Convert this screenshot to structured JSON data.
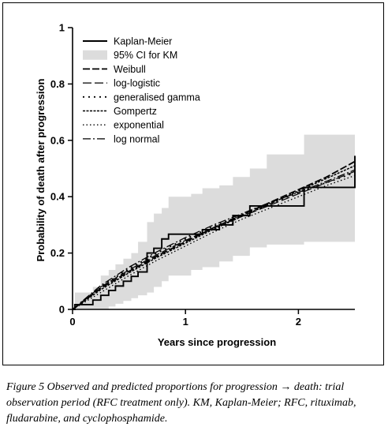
{
  "chart_data": {
    "type": "line",
    "title": "",
    "xlabel": "Years since progression",
    "ylabel": "Probability of death after progression",
    "xlim": [
      0,
      2.5
    ],
    "ylim": [
      0,
      1
    ],
    "x_ticks": [
      0,
      1,
      2
    ],
    "y_ticks": [
      0,
      0.2,
      0.4,
      0.6,
      0.8,
      1
    ],
    "x_tick_labels": [
      "0",
      "1",
      "2"
    ],
    "y_tick_labels": [
      "0",
      "0.2",
      "0.4",
      "0.6",
      "0.8",
      "1"
    ],
    "grid": false,
    "legend_position": "top-left",
    "kaplan_meier": {
      "name": "Kaplan-Meier",
      "x": [
        0,
        0.02,
        0.18,
        0.25,
        0.32,
        0.38,
        0.45,
        0.52,
        0.58,
        0.66,
        0.72,
        0.79,
        0.85,
        1.05,
        1.15,
        1.3,
        1.42,
        1.57,
        1.72,
        2.05,
        2.5
      ],
      "y": [
        0,
        0.017,
        0.033,
        0.05,
        0.067,
        0.083,
        0.1,
        0.117,
        0.133,
        0.2,
        0.217,
        0.25,
        0.267,
        0.267,
        0.283,
        0.3,
        0.333,
        0.367,
        0.367,
        0.433,
        0.545
      ]
    },
    "ci_band": {
      "name": "95% CI for KM",
      "x": [
        0,
        0.02,
        0.18,
        0.25,
        0.32,
        0.38,
        0.45,
        0.52,
        0.58,
        0.66,
        0.72,
        0.79,
        0.85,
        1.05,
        1.15,
        1.3,
        1.42,
        1.57,
        1.72,
        2.05,
        2.5
      ],
      "lower": [
        0,
        0,
        0,
        0,
        0.01,
        0.02,
        0.03,
        0.04,
        0.05,
        0.06,
        0.08,
        0.1,
        0.12,
        0.14,
        0.15,
        0.17,
        0.19,
        0.22,
        0.23,
        0.24,
        0.21
      ],
      "upper": [
        0,
        0.06,
        0.08,
        0.12,
        0.14,
        0.16,
        0.18,
        0.2,
        0.24,
        0.31,
        0.34,
        0.36,
        0.4,
        0.41,
        0.43,
        0.44,
        0.47,
        0.5,
        0.55,
        0.62,
        0.74
      ]
    },
    "series": [
      {
        "name": "Weibull",
        "dash": "9,3",
        "width": 1.8,
        "x": [
          0,
          0.25,
          0.5,
          0.75,
          1,
          1.25,
          1.5,
          1.75,
          2,
          2.25,
          2.5
        ],
        "y": [
          0,
          0.075,
          0.135,
          0.19,
          0.24,
          0.29,
          0.335,
          0.38,
          0.425,
          0.47,
          0.525
        ]
      },
      {
        "name": "log-logistic",
        "dash": "11,4",
        "width": 1.2,
        "x": [
          0,
          0.25,
          0.5,
          0.75,
          1,
          1.25,
          1.5,
          1.75,
          2,
          2.25,
          2.5
        ],
        "y": [
          0,
          0.08,
          0.14,
          0.195,
          0.245,
          0.29,
          0.33,
          0.37,
          0.41,
          0.45,
          0.49
        ]
      },
      {
        "name": "generalised gamma",
        "dash": "2,5",
        "width": 1.8,
        "x": [
          0,
          0.25,
          0.5,
          0.75,
          1,
          1.25,
          1.5,
          1.75,
          2,
          2.25,
          2.5
        ],
        "y": [
          0,
          0.08,
          0.145,
          0.2,
          0.25,
          0.295,
          0.335,
          0.375,
          0.415,
          0.45,
          0.485
        ]
      },
      {
        "name": "Gompertz",
        "dash": "3,1.5",
        "width": 1.5,
        "x": [
          0,
          0.25,
          0.5,
          0.75,
          1,
          1.25,
          1.5,
          1.75,
          2,
          2.25,
          2.5
        ],
        "y": [
          0,
          0.07,
          0.13,
          0.185,
          0.235,
          0.285,
          0.33,
          0.375,
          0.42,
          0.465,
          0.51
        ]
      },
      {
        "name": "exponential",
        "dash": "1.5,3",
        "width": 1.4,
        "x": [
          0,
          0.25,
          0.5,
          0.75,
          1,
          1.25,
          1.5,
          1.75,
          2,
          2.25,
          2.5
        ],
        "y": [
          0,
          0.06,
          0.12,
          0.175,
          0.225,
          0.275,
          0.32,
          0.36,
          0.4,
          0.44,
          0.475
        ]
      },
      {
        "name": "log normal",
        "dash": "10,3,2,3",
        "width": 1.3,
        "x": [
          0,
          0.25,
          0.5,
          0.75,
          1,
          1.25,
          1.5,
          1.75,
          2,
          2.25,
          2.5
        ],
        "y": [
          0,
          0.085,
          0.15,
          0.205,
          0.255,
          0.3,
          0.34,
          0.38,
          0.415,
          0.455,
          0.495
        ]
      }
    ],
    "colors": {
      "ci_fill": "#dcdcdc",
      "lines": "#000000"
    }
  },
  "caption": {
    "text": "Figure 5   Observed and predicted proportions for progression → death: trial observation period (RFC treatment only). KM, Kaplan-Meier; RFC, rituximab, fludarabine, and cyclophosphamide."
  }
}
